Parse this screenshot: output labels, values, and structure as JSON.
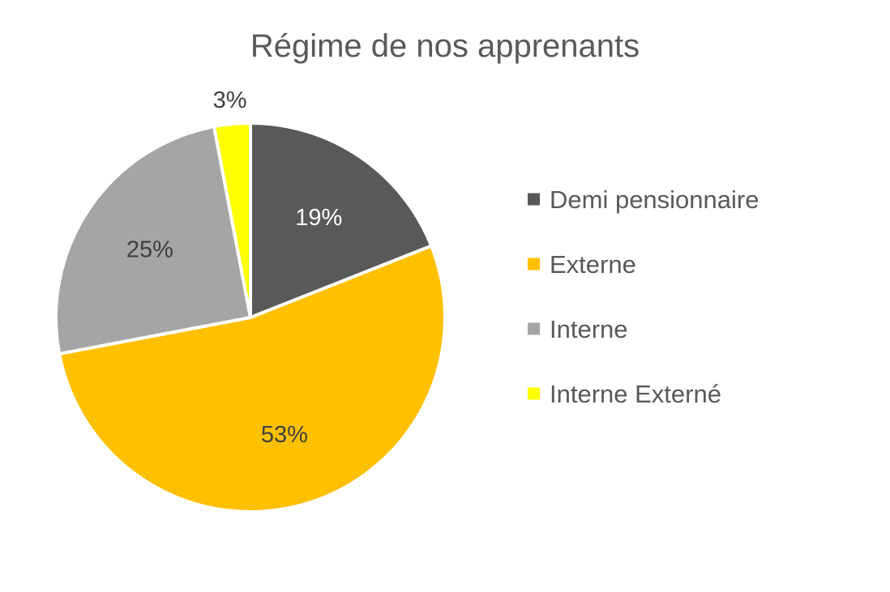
{
  "chart_data": {
    "type": "pie",
    "title": "Régime de nos apprenants",
    "legend_position": "right",
    "start_angle_deg": 0,
    "direction": "clockwise",
    "slices": [
      {
        "label": "Demi pensionnaire",
        "value": 19,
        "display": "19%",
        "color": "#595959",
        "label_color": "#ffffff"
      },
      {
        "label": "Externe",
        "value": 53,
        "display": "53%",
        "color": "#ffc000",
        "label_color": "#404040"
      },
      {
        "label": "Interne",
        "value": 25,
        "display": "25%",
        "color": "#a5a5a5",
        "label_color": "#404040"
      },
      {
        "label": "Interne Externé",
        "value": 3,
        "display": "3%",
        "color": "#ffff00",
        "label_color": "#404040"
      }
    ]
  }
}
